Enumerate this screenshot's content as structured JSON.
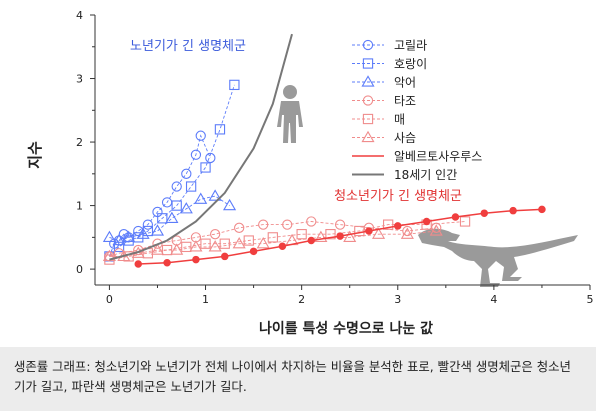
{
  "chart_data": {
    "type": "scatter",
    "title": "",
    "xlabel": "나이를 특성 수명으로 나눈 값",
    "ylabel": "지수",
    "xlim": [
      -0.15,
      5
    ],
    "ylim": [
      -0.25,
      4
    ],
    "x_ticks": [
      "0",
      "1",
      "2",
      "3",
      "4",
      "5"
    ],
    "y_ticks": [
      "0",
      "1",
      "2",
      "3",
      "4"
    ],
    "x_tick_values": [
      0,
      1,
      2,
      3,
      4,
      5
    ],
    "y_tick_values": [
      0,
      1,
      2,
      3,
      4
    ],
    "grid": false,
    "legend_position": "top-right",
    "annotations": [
      {
        "id": "blue",
        "text": "노년기가 긴 생명체군",
        "color": "#3b5bdb"
      },
      {
        "id": "red",
        "text": "청소년기가 긴 생명체군",
        "color": "#e03131"
      }
    ],
    "series": [
      {
        "name": "고릴라",
        "marker": "circle",
        "color": "#5c7cfa",
        "x": [
          0.0,
          0.05,
          0.1,
          0.15,
          0.2,
          0.3,
          0.4,
          0.5,
          0.6,
          0.7,
          0.8,
          0.9,
          0.95,
          1.05
        ],
        "y": [
          0.2,
          0.4,
          0.45,
          0.55,
          0.5,
          0.6,
          0.7,
          0.9,
          1.05,
          1.3,
          1.5,
          1.8,
          2.1,
          1.75
        ]
      },
      {
        "name": "호랑이",
        "marker": "square",
        "color": "#5c7cfa",
        "x": [
          0.0,
          0.1,
          0.2,
          0.3,
          0.4,
          0.55,
          0.7,
          0.85,
          1.0,
          1.15,
          1.3
        ],
        "y": [
          0.2,
          0.35,
          0.45,
          0.5,
          0.6,
          0.8,
          1.0,
          1.3,
          1.6,
          2.2,
          2.9
        ]
      },
      {
        "name": "악어",
        "marker": "triangle",
        "color": "#5c7cfa",
        "x": [
          0.0,
          0.1,
          0.2,
          0.35,
          0.5,
          0.65,
          0.8,
          0.95,
          1.1,
          1.25
        ],
        "y": [
          0.5,
          0.45,
          0.5,
          0.55,
          0.6,
          0.8,
          0.95,
          1.1,
          1.15,
          1.0
        ]
      },
      {
        "name": "타조",
        "marker": "circle",
        "color": "#f08c8c",
        "x": [
          0.0,
          0.1,
          0.3,
          0.5,
          0.7,
          0.9,
          1.1,
          1.35,
          1.6,
          1.85,
          2.1,
          2.4,
          2.7,
          3.1,
          3.4
        ],
        "y": [
          0.2,
          0.25,
          0.3,
          0.4,
          0.45,
          0.5,
          0.55,
          0.65,
          0.7,
          0.7,
          0.75,
          0.7,
          0.65,
          0.6,
          0.65
        ]
      },
      {
        "name": "매",
        "marker": "square",
        "color": "#f08c8c",
        "x": [
          0.0,
          0.2,
          0.4,
          0.6,
          0.8,
          1.0,
          1.2,
          1.45,
          1.7,
          2.0,
          2.3,
          2.6,
          2.9,
          3.3,
          3.7
        ],
        "y": [
          0.15,
          0.2,
          0.25,
          0.3,
          0.35,
          0.4,
          0.4,
          0.45,
          0.5,
          0.55,
          0.55,
          0.6,
          0.7,
          0.7,
          0.75
        ]
      },
      {
        "name": "사슴",
        "marker": "triangle",
        "color": "#f08c8c",
        "x": [
          0.0,
          0.15,
          0.3,
          0.5,
          0.7,
          0.9,
          1.1,
          1.35,
          1.6,
          1.9,
          2.2,
          2.5,
          2.8,
          3.1,
          3.4
        ],
        "y": [
          0.2,
          0.2,
          0.25,
          0.3,
          0.3,
          0.35,
          0.35,
          0.4,
          0.4,
          0.45,
          0.5,
          0.5,
          0.55,
          0.55,
          0.6
        ]
      },
      {
        "name": "알베르토사우루스",
        "type": "line+points",
        "color": "#f03e3e",
        "x": [
          0.3,
          0.6,
          0.9,
          1.2,
          1.5,
          1.8,
          2.1,
          2.4,
          2.7,
          3.0,
          3.3,
          3.6,
          3.9,
          4.2,
          4.5
        ],
        "y": [
          0.08,
          0.1,
          0.15,
          0.2,
          0.28,
          0.36,
          0.45,
          0.52,
          0.6,
          0.68,
          0.75,
          0.82,
          0.88,
          0.92,
          0.94
        ]
      },
      {
        "name": "18세기 인간",
        "type": "line",
        "color": "#777777",
        "x": [
          0.0,
          0.3,
          0.6,
          0.9,
          1.2,
          1.5,
          1.7,
          1.9
        ],
        "y": [
          0.15,
          0.27,
          0.45,
          0.75,
          1.2,
          1.9,
          2.6,
          3.7
        ]
      }
    ]
  },
  "legend_items": [
    "고릴라",
    "호랑이",
    "악어",
    "타조",
    "매",
    "사슴",
    "알베르토사우루스",
    "18세기 인간"
  ],
  "figures": {
    "human": "human-silhouette-icon",
    "dinosaur": "tyrannosaur-silhouette-icon"
  },
  "caption": "생존률 그래프: 청소년기와 노년기가 전체 나이에서 차지하는 비율을 분석한 표로, 빨간색 생명체군은 청소년기가 길고, 파란색 생명체군은 노년기가 길다."
}
